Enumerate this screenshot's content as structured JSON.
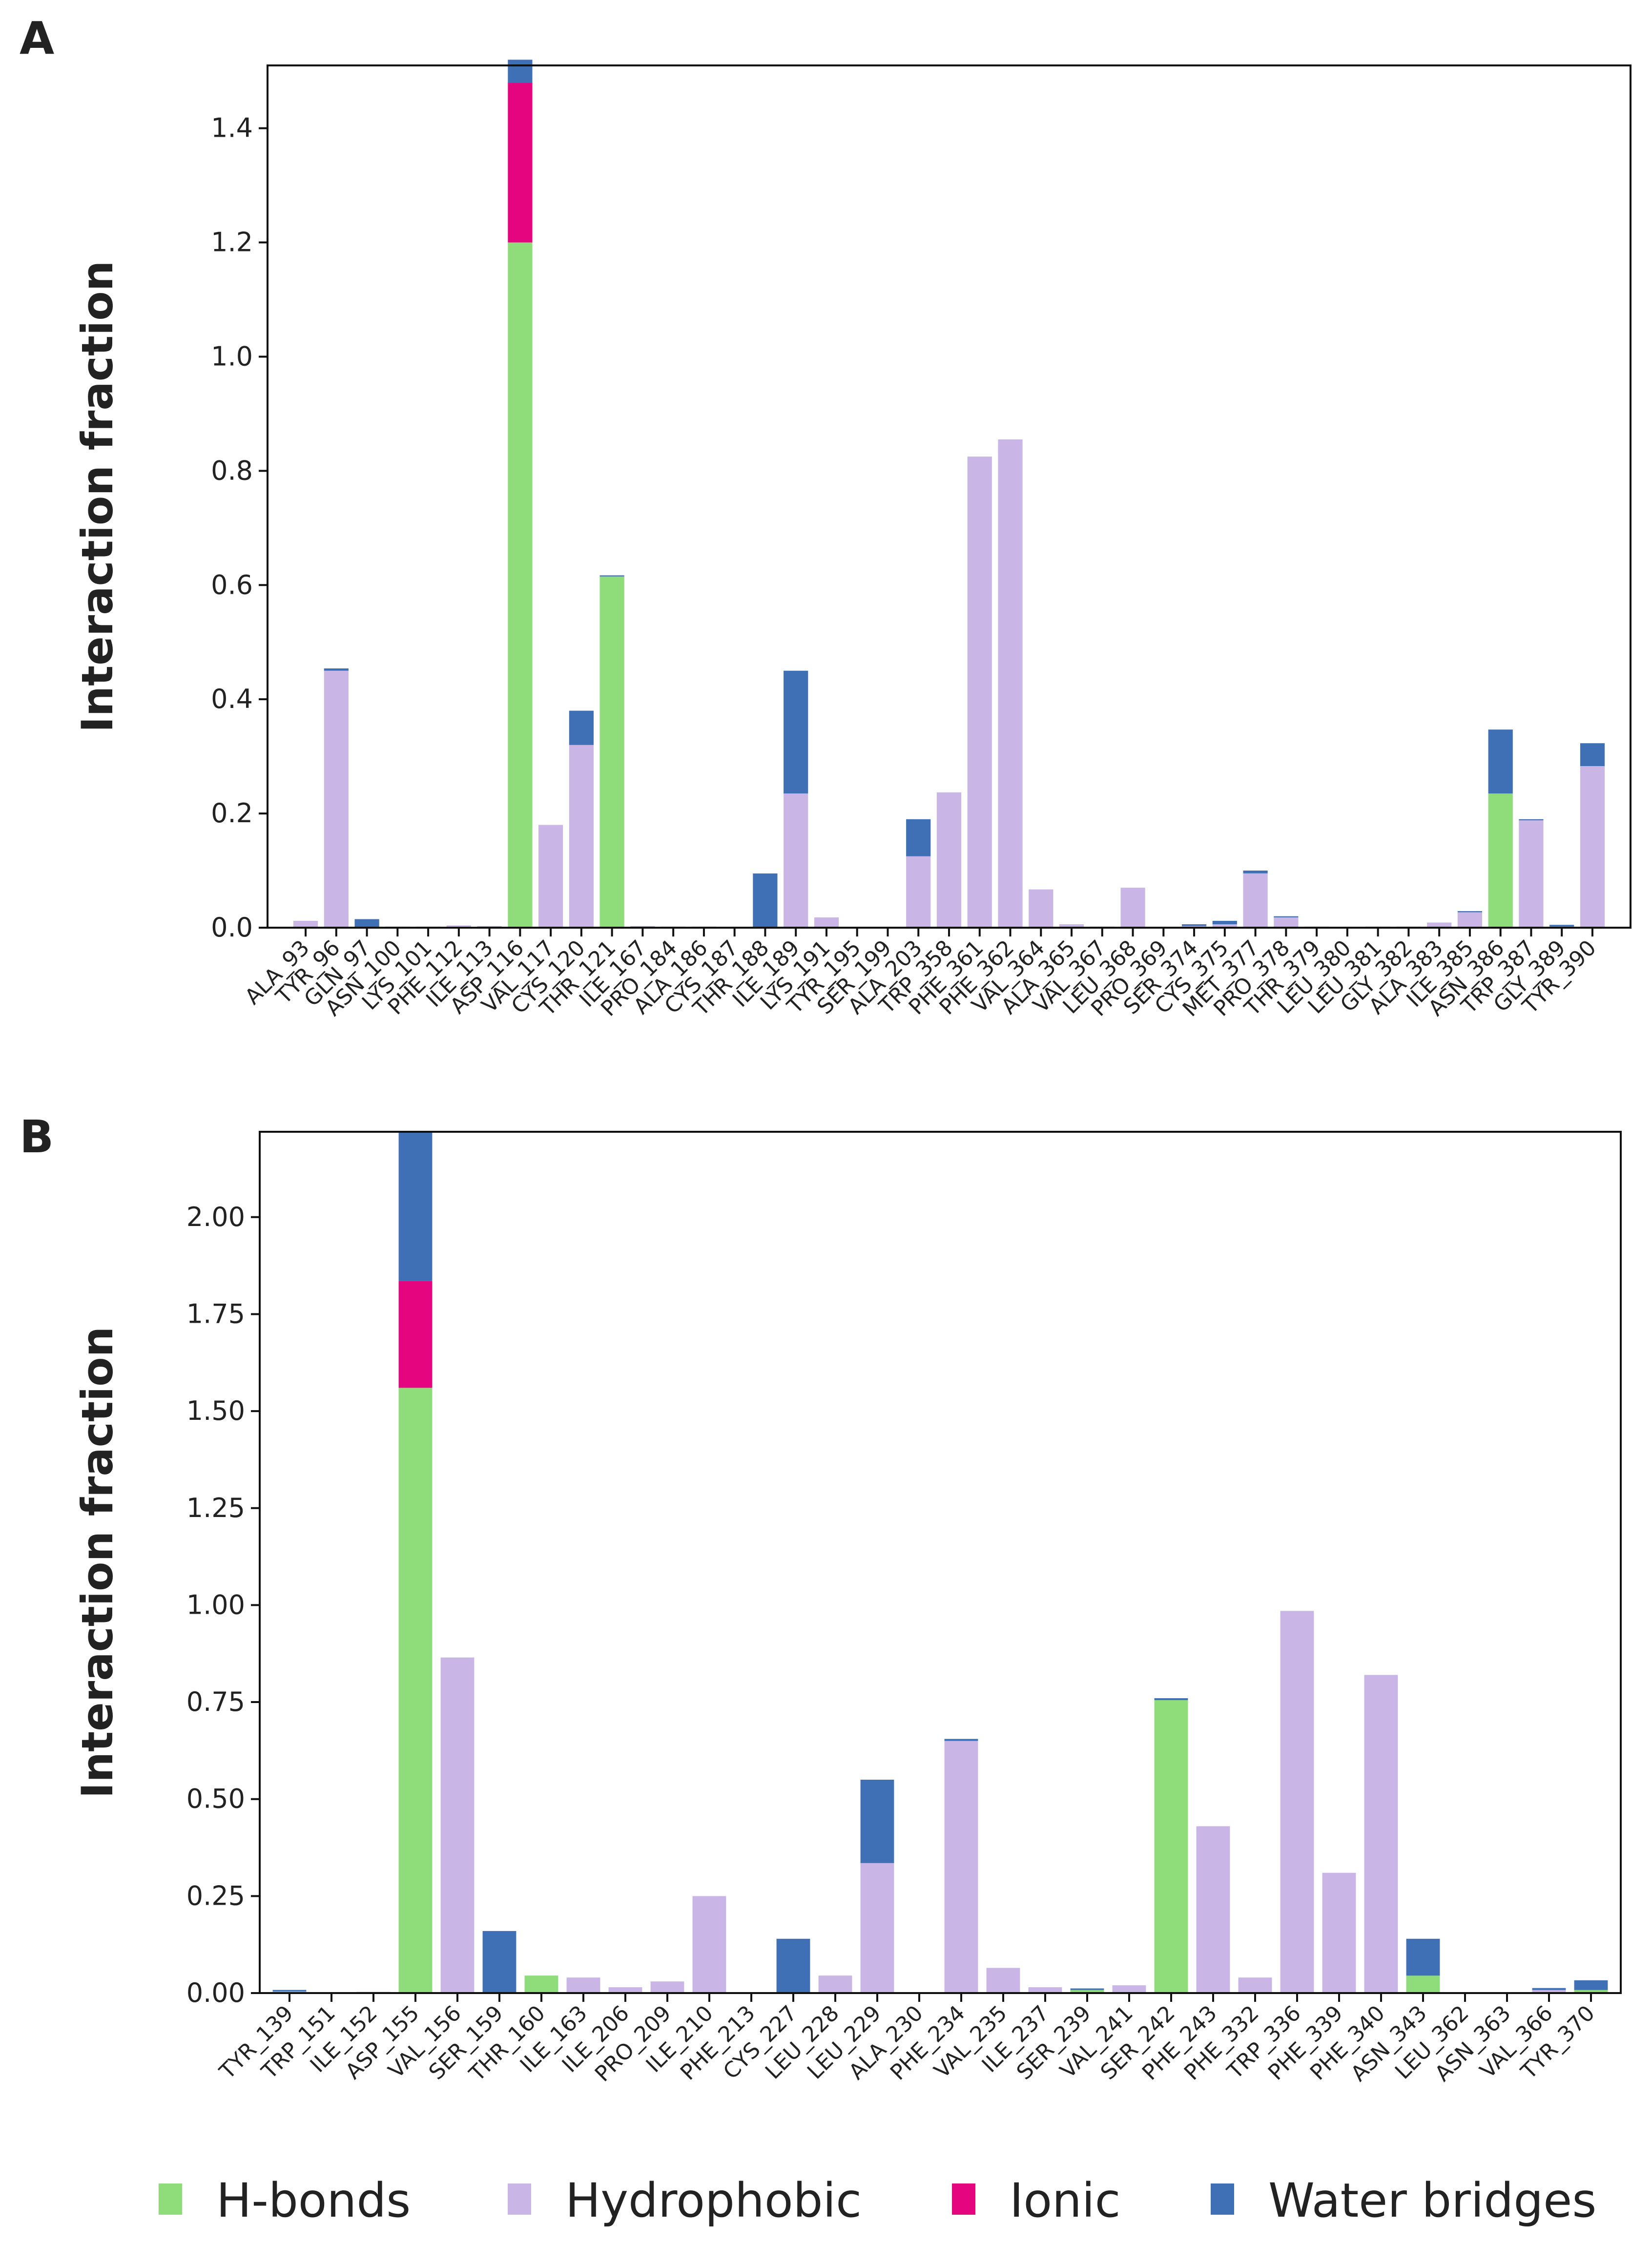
{
  "legend": [
    {
      "key": "hbonds",
      "label": "H-bonds",
      "color": "#8edc7a"
    },
    {
      "key": "hydrophobic",
      "label": "Hydrophobic",
      "color": "#c9b6e6"
    },
    {
      "key": "ionic",
      "label": "Ionic",
      "color": "#e5067f"
    },
    {
      "key": "water",
      "label": "Water bridges",
      "color": "#3f6fb5"
    }
  ],
  "chart_data": [
    {
      "panel": "A",
      "type": "bar",
      "stacked": true,
      "ylabel": "Interaction fraction",
      "ylim": [
        0,
        1.51
      ],
      "yticks": [
        "0.0",
        "0.2",
        "0.4",
        "0.6",
        "0.8",
        "1.0",
        "1.2",
        "1.4"
      ],
      "categories": [
        "ALA_93",
        "TYR_96",
        "GLN_97",
        "ASN_100",
        "LYS_101",
        "PHE_112",
        "ILE_113",
        "ASP_116",
        "VAL_117",
        "CYS_120",
        "THR_121",
        "ILE_167",
        "PRO_184",
        "ALA_186",
        "CYS_187",
        "THR_188",
        "ILE_189",
        "LYS_191",
        "TYR_195",
        "SER_199",
        "ALA_203",
        "TRP_358",
        "PHE_361",
        "PHE_362",
        "VAL_364",
        "ALA_365",
        "VAL_367",
        "LEU_368",
        "PRO_369",
        "SER_374",
        "CYS_375",
        "MET_377",
        "PRO_378",
        "THR_379",
        "LEU_380",
        "LEU_381",
        "GLY_382",
        "ALA_383",
        "ILE_385",
        "ASN_386",
        "TRP_387",
        "GLY_389",
        "TYR_390"
      ],
      "series": [
        {
          "name": "H-bonds",
          "values": [
            0,
            0,
            0,
            0,
            0,
            0,
            0,
            1.2,
            0,
            0,
            0.615,
            0,
            0,
            0,
            0,
            0,
            0,
            0,
            0,
            0,
            0,
            0,
            0,
            0,
            0,
            0,
            0,
            0,
            0,
            0,
            0,
            0,
            0,
            0,
            0,
            0,
            0,
            0,
            0,
            0.235,
            0,
            0,
            0
          ]
        },
        {
          "name": "Hydrophobic",
          "values": [
            0.012,
            0.45,
            0,
            0.002,
            0.002,
            0.004,
            0.003,
            0,
            0.18,
            0.32,
            0,
            0.003,
            0.002,
            0.002,
            0,
            0,
            0.235,
            0.018,
            0,
            0,
            0.125,
            0.237,
            0.825,
            0.855,
            0.067,
            0.006,
            0.002,
            0.07,
            0,
            0.003,
            0.006,
            0.095,
            0.018,
            0.002,
            0.001,
            0.002,
            0.002,
            0.009,
            0.027,
            0,
            0.188,
            0.002,
            0.283
          ]
        },
        {
          "name": "Ionic",
          "values": [
            0,
            0,
            0,
            0,
            0,
            0,
            0,
            0.28,
            0,
            0,
            0,
            0,
            0,
            0,
            0,
            0,
            0,
            0,
            0,
            0,
            0,
            0,
            0,
            0,
            0,
            0,
            0,
            0,
            0,
            0,
            0,
            0,
            0,
            0,
            0,
            0,
            0,
            0,
            0,
            0,
            0,
            0,
            0
          ]
        },
        {
          "name": "Water bridges",
          "values": [
            0,
            0.004,
            0.015,
            0,
            0,
            0,
            0,
            0.04,
            0,
            0.06,
            0.002,
            0,
            0,
            0,
            0,
            0.095,
            0.215,
            0,
            0,
            0,
            0.065,
            0,
            0,
            0,
            0,
            0,
            0,
            0,
            0,
            0.003,
            0.006,
            0.005,
            0.002,
            0,
            0,
            0,
            0,
            0,
            0.002,
            0.112,
            0.002,
            0.003,
            0.04
          ]
        }
      ]
    },
    {
      "panel": "B",
      "type": "bar",
      "stacked": true,
      "ylabel": "Interaction fraction",
      "ylim": [
        0,
        2.22
      ],
      "yticks": [
        "0.00",
        "0.25",
        "0.50",
        "0.75",
        "1.00",
        "1.25",
        "1.50",
        "1.75",
        "2.00"
      ],
      "categories": [
        "TYR_139",
        "TRP_151",
        "ILE_152",
        "ASP_155",
        "VAL_156",
        "SER_159",
        "THR_160",
        "ILE_163",
        "ILE_206",
        "PRO_209",
        "ILE_210",
        "PHE_213",
        "CYS_227",
        "LEU_228",
        "LEU_229",
        "ALA_230",
        "PHE_234",
        "VAL_235",
        "ILE_237",
        "SER_239",
        "VAL_241",
        "SER_242",
        "PHE_243",
        "PHE_332",
        "TRP_336",
        "PHE_339",
        "PHE_340",
        "ASN_343",
        "LEU_362",
        "ASN_363",
        "VAL_366",
        "TYR_370"
      ],
      "series": [
        {
          "name": "H-bonds",
          "values": [
            0,
            0,
            0,
            1.56,
            0,
            0,
            0.045,
            0,
            0,
            0,
            0,
            0,
            0,
            0,
            0,
            0,
            0,
            0,
            0,
            0.008,
            0,
            0.755,
            0,
            0,
            0,
            0,
            0,
            0.045,
            0,
            0,
            0,
            0.008
          ]
        },
        {
          "name": "Hydrophobic",
          "values": [
            0.004,
            0,
            0.003,
            0,
            0.865,
            0,
            0,
            0.04,
            0.015,
            0.03,
            0.25,
            0,
            0,
            0.045,
            0.335,
            0,
            0.65,
            0.065,
            0.015,
            0,
            0.02,
            0,
            0.43,
            0.04,
            0.985,
            0.31,
            0.82,
            0,
            0,
            0,
            0.008,
            0
          ]
        },
        {
          "name": "Ionic",
          "values": [
            0,
            0,
            0,
            0.275,
            0,
            0,
            0,
            0,
            0,
            0,
            0,
            0,
            0,
            0,
            0,
            0,
            0,
            0,
            0,
            0,
            0,
            0,
            0,
            0,
            0,
            0,
            0,
            0,
            0,
            0,
            0,
            0
          ]
        },
        {
          "name": "Water bridges",
          "values": [
            0.004,
            0,
            0,
            0.385,
            0,
            0.16,
            0,
            0,
            0,
            0,
            0,
            0,
            0.14,
            0,
            0.215,
            0,
            0.005,
            0,
            0,
            0.004,
            0,
            0.005,
            0,
            0,
            0,
            0,
            0,
            0.095,
            0,
            0,
            0.005,
            0.025
          ]
        }
      ]
    }
  ]
}
